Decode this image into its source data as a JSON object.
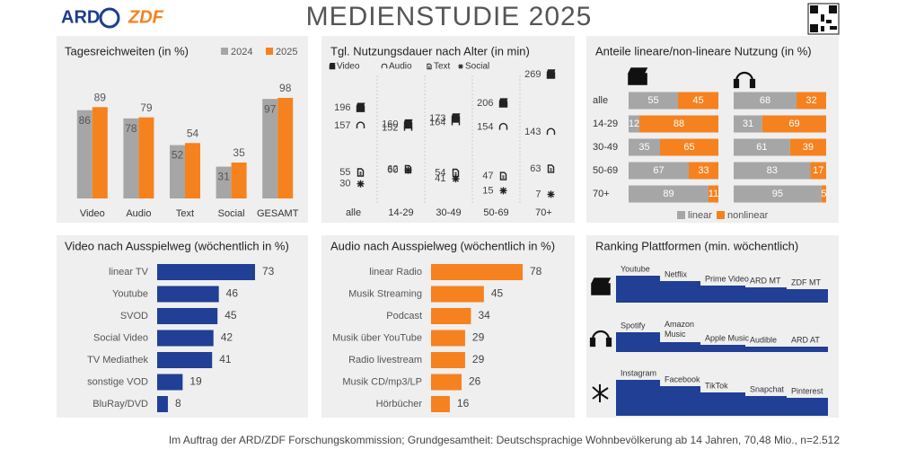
{
  "header": {
    "title": "MEDIENSTUDIE 2025",
    "logos": [
      "ARD",
      "ZDF"
    ]
  },
  "chart_data": [
    {
      "type": "grouped-bar",
      "title": "Tagesreichweiten (in %)",
      "categories": [
        "Video",
        "Audio",
        "Text",
        "Social",
        "GESAMT"
      ],
      "series": [
        {
          "name": "2024",
          "color": "#a6a6a6",
          "values": [
            86,
            78,
            52,
            31,
            97
          ]
        },
        {
          "name": "2025",
          "color": "#f5821f",
          "values": [
            89,
            79,
            54,
            35,
            98
          ]
        }
      ]
    },
    {
      "type": "dot",
      "title": "Tgl. Nutzungsdauer nach Alter (in min)",
      "categories": [
        "alle",
        "14-29",
        "30-49",
        "50-69",
        "70+"
      ],
      "series": [
        {
          "name": "Video",
          "color": "#222222",
          "values": [
            196,
            160,
            173,
            206,
            269
          ]
        },
        {
          "name": "Audio",
          "color": "#222222",
          "values": [
            157,
            152,
            164,
            154,
            143
          ]
        },
        {
          "name": "Text",
          "color": "#222222",
          "values": [
            55,
            62,
            54,
            47,
            63
          ]
        },
        {
          "name": "Social",
          "color": "#222222",
          "values": [
            30,
            60,
            41,
            15,
            7
          ]
        }
      ]
    },
    {
      "type": "stacked-share",
      "title": "Anteile lineare/non-lineare Nutzung (in %)",
      "categories": [
        "alle",
        "14-29",
        "30-49",
        "50-69",
        "70+"
      ],
      "series": [
        {
          "name": "linear",
          "color": "#a6a6a6",
          "values": [
            [
              55,
              68
            ],
            [
              12,
              31
            ],
            [
              35,
              61
            ],
            [
              67,
              83
            ],
            [
              89,
              95
            ]
          ]
        },
        {
          "name": "nonlinear",
          "color": "#f5821f",
          "values": [
            [
              45,
              32
            ],
            [
              88,
              69
            ],
            [
              65,
              39
            ],
            [
              33,
              17
            ],
            [
              11,
              5
            ]
          ]
        }
      ]
    },
    {
      "type": "hbar",
      "title": "Video nach Ausspielweg  (wöchentlich in %)",
      "color": "#203f95",
      "categories": [
        "linear TV",
        "Youtube",
        "SVOD",
        "Social Video",
        "TV Mediathek",
        "sonstige VOD",
        "BluRay/DVD"
      ],
      "values": [
        73,
        46,
        45,
        42,
        41,
        19,
        8
      ]
    },
    {
      "type": "hbar",
      "title": "Audio nach Ausspielweg  (wöchentlich in %)",
      "color": "#f5821f",
      "categories": [
        "linear Radio",
        "Musik Streaming",
        "Podcast",
        "Musik über YouTube",
        "Radio livestream",
        "Musik CD/mp3/LP",
        "Hörbücher"
      ],
      "values": [
        78,
        45,
        34,
        29,
        29,
        26,
        16
      ]
    },
    {
      "type": "ranking",
      "title": "Ranking Plattformen (min. wöchentlich)",
      "color": "#203f95",
      "rows": [
        [
          "Youtube",
          "Netflix",
          "Prime Video",
          "ARD MT",
          "ZDF MT"
        ],
        [
          "Spotify",
          "Amazon Music",
          "Apple Music",
          "Audible",
          "ARD AT"
        ],
        [
          "Instagram",
          "Facebook",
          "TikTok",
          "Snapchat",
          "Pinterest"
        ]
      ]
    }
  ],
  "footer": "Im Auftrag der ARD/ZDF Forschungskommission; Grundgesamtheit: Deutschsprachige Wohnbevölkerung ab 14 Jahren, 70,48 Mio., n=2.512"
}
